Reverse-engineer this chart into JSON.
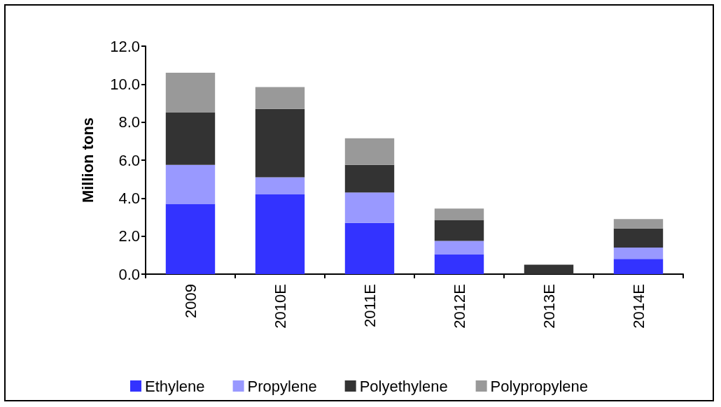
{
  "chart_data": {
    "type": "bar",
    "stacked": true,
    "ylabel": "Million tons",
    "categories": [
      "2009",
      "2010E",
      "2011E",
      "2012E",
      "2013E",
      "2014E"
    ],
    "series": [
      {
        "name": "Ethylene",
        "color": "#3333ff",
        "values": [
          3.7,
          4.2,
          2.7,
          1.05,
          0,
          0.8
        ]
      },
      {
        "name": "Propylene",
        "color": "#9999ff",
        "values": [
          2.05,
          0.9,
          1.6,
          0.7,
          0,
          0.6
        ]
      },
      {
        "name": "Polyethylene",
        "color": "#333333",
        "values": [
          2.75,
          3.6,
          1.45,
          1.1,
          0.5,
          1.0
        ]
      },
      {
        "name": "Polypropylene",
        "color": "#999999",
        "values": [
          2.1,
          1.15,
          1.4,
          0.6,
          0,
          0.5
        ]
      }
    ],
    "ylim": [
      0,
      12
    ],
    "yticks": [
      {
        "value": 0,
        "label": "0.0"
      },
      {
        "value": 2,
        "label": "2.0"
      },
      {
        "value": 4,
        "label": "4.0"
      },
      {
        "value": 6,
        "label": "6.0"
      },
      {
        "value": 8,
        "label": "8.0"
      },
      {
        "value": 10,
        "label": "10.0"
      },
      {
        "value": 12,
        "label": "12.0"
      }
    ],
    "grid": false,
    "legend": "bottom"
  }
}
